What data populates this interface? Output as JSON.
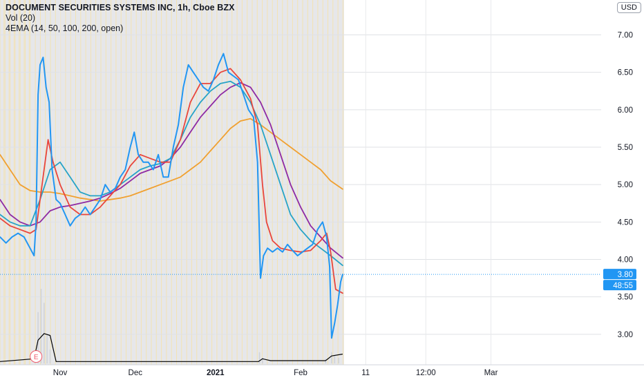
{
  "header": {
    "title": "DOCUMENT SECURITIES SYSTEMS INC, 1h, Cboe BZX",
    "volume_label": "Vol (20)",
    "ema_label": "4EMA (14, 50, 100, 200, open)",
    "currency_button": "USD"
  },
  "price_tag": {
    "price": "3.80",
    "countdown": "48:55"
  },
  "earnings_marker": "E",
  "colors": {
    "price": "#2196f3",
    "ema14": "#e8453c",
    "ema50": "#26a3c7",
    "ema100": "#8e2aa3",
    "ema200": "#f0a030",
    "volume": "#cfd3da",
    "volume_ma": "#000000",
    "session_bg": "#e6e7ea",
    "session_line": "#f3e3b3"
  },
  "chart_data": {
    "type": "line",
    "title": "DOCUMENT SECURITIES SYSTEMS INC, 1h, Cboe BZX",
    "xlabel": "",
    "ylabel": "",
    "ylim": [
      2.62,
      7.3
    ],
    "y_ticks": [
      "7.00",
      "6.50",
      "6.00",
      "5.50",
      "5.00",
      "4.50",
      "4.00",
      "3.50",
      "3.00"
    ],
    "x_ticks": [
      {
        "label": "Nov",
        "x": 6,
        "bold": false
      },
      {
        "label": "Dec",
        "x": 13.5,
        "bold": false
      },
      {
        "label": "2021",
        "x": 21.5,
        "bold": true
      },
      {
        "label": "Feb",
        "x": 30,
        "bold": false
      },
      {
        "label": "11",
        "x": 36.5,
        "bold": false
      },
      {
        "label": "12:00",
        "x": 42.5,
        "bold": false
      },
      {
        "label": "Mar",
        "x": 49,
        "bold": false
      }
    ],
    "x_range": [
      0,
      60
    ],
    "last_data_x": 34.2,
    "grid": true,
    "legend": "top-left",
    "last_price": 3.8,
    "series": [
      {
        "name": "Price",
        "key": "price",
        "points": [
          [
            0,
            4.3
          ],
          [
            0.6,
            4.22
          ],
          [
            1.2,
            4.3
          ],
          [
            1.8,
            4.35
          ],
          [
            2.4,
            4.3
          ],
          [
            3.0,
            4.15
          ],
          [
            3.4,
            4.05
          ],
          [
            3.6,
            4.5
          ],
          [
            3.8,
            6.2
          ],
          [
            4.0,
            6.6
          ],
          [
            4.3,
            6.7
          ],
          [
            4.6,
            6.3
          ],
          [
            4.9,
            6.1
          ],
          [
            5.2,
            5.2
          ],
          [
            5.6,
            4.8
          ],
          [
            6.0,
            4.75
          ],
          [
            6.5,
            4.6
          ],
          [
            7.0,
            4.45
          ],
          [
            7.5,
            4.55
          ],
          [
            8.0,
            4.6
          ],
          [
            8.5,
            4.7
          ],
          [
            9.0,
            4.6
          ],
          [
            9.5,
            4.7
          ],
          [
            10.0,
            4.8
          ],
          [
            10.5,
            5.0
          ],
          [
            11.0,
            4.9
          ],
          [
            11.5,
            4.95
          ],
          [
            12.0,
            5.1
          ],
          [
            12.5,
            5.2
          ],
          [
            13.0,
            5.5
          ],
          [
            13.4,
            5.7
          ],
          [
            13.8,
            5.4
          ],
          [
            14.3,
            5.3
          ],
          [
            14.8,
            5.3
          ],
          [
            15.3,
            5.2
          ],
          [
            15.8,
            5.4
          ],
          [
            16.3,
            5.1
          ],
          [
            16.8,
            5.1
          ],
          [
            17.3,
            5.5
          ],
          [
            17.8,
            5.8
          ],
          [
            18.3,
            6.3
          ],
          [
            18.8,
            6.6
          ],
          [
            19.3,
            6.5
          ],
          [
            19.8,
            6.4
          ],
          [
            20.3,
            6.3
          ],
          [
            20.8,
            6.25
          ],
          [
            21.3,
            6.4
          ],
          [
            21.8,
            6.6
          ],
          [
            22.3,
            6.75
          ],
          [
            22.8,
            6.5
          ],
          [
            23.3,
            6.45
          ],
          [
            23.8,
            6.4
          ],
          [
            24.3,
            6.2
          ],
          [
            24.8,
            6.0
          ],
          [
            25.3,
            5.9
          ],
          [
            25.7,
            5.3
          ],
          [
            26.0,
            3.75
          ],
          [
            26.3,
            4.05
          ],
          [
            26.7,
            4.15
          ],
          [
            27.2,
            4.1
          ],
          [
            27.7,
            4.15
          ],
          [
            28.2,
            4.1
          ],
          [
            28.7,
            4.2
          ],
          [
            29.2,
            4.12
          ],
          [
            29.7,
            4.05
          ],
          [
            30.2,
            4.1
          ],
          [
            30.7,
            4.15
          ],
          [
            31.2,
            4.2
          ],
          [
            31.7,
            4.4
          ],
          [
            32.2,
            4.5
          ],
          [
            32.6,
            4.3
          ],
          [
            32.9,
            3.9
          ],
          [
            33.1,
            2.95
          ],
          [
            33.4,
            3.15
          ],
          [
            33.7,
            3.4
          ],
          [
            34.0,
            3.7
          ],
          [
            34.2,
            3.8
          ]
        ]
      },
      {
        "name": "EMA 14",
        "key": "ema14",
        "points": [
          [
            0,
            4.55
          ],
          [
            1,
            4.45
          ],
          [
            2,
            4.4
          ],
          [
            3,
            4.35
          ],
          [
            3.6,
            4.4
          ],
          [
            4.2,
            5.0
          ],
          [
            4.8,
            5.6
          ],
          [
            5.3,
            5.3
          ],
          [
            6,
            5.0
          ],
          [
            7,
            4.7
          ],
          [
            8,
            4.6
          ],
          [
            9,
            4.6
          ],
          [
            10,
            4.7
          ],
          [
            11,
            4.85
          ],
          [
            12,
            5.0
          ],
          [
            13,
            5.25
          ],
          [
            14,
            5.4
          ],
          [
            15,
            5.35
          ],
          [
            16,
            5.3
          ],
          [
            17,
            5.3
          ],
          [
            18,
            5.6
          ],
          [
            19,
            6.1
          ],
          [
            20,
            6.35
          ],
          [
            21,
            6.35
          ],
          [
            22,
            6.5
          ],
          [
            23,
            6.55
          ],
          [
            24,
            6.4
          ],
          [
            25,
            6.15
          ],
          [
            25.7,
            5.8
          ],
          [
            26.2,
            5.0
          ],
          [
            26.6,
            4.5
          ],
          [
            27.2,
            4.25
          ],
          [
            28,
            4.15
          ],
          [
            29,
            4.12
          ],
          [
            30,
            4.1
          ],
          [
            31,
            4.12
          ],
          [
            32,
            4.25
          ],
          [
            32.6,
            4.35
          ],
          [
            33.0,
            4.1
          ],
          [
            33.5,
            3.6
          ],
          [
            34.2,
            3.55
          ]
        ]
      },
      {
        "name": "EMA 50",
        "key": "ema50",
        "points": [
          [
            0,
            4.6
          ],
          [
            1,
            4.5
          ],
          [
            2,
            4.45
          ],
          [
            3,
            4.45
          ],
          [
            4,
            4.8
          ],
          [
            5,
            5.2
          ],
          [
            6,
            5.3
          ],
          [
            7,
            5.1
          ],
          [
            8,
            4.9
          ],
          [
            9,
            4.85
          ],
          [
            10,
            4.85
          ],
          [
            11,
            4.9
          ],
          [
            12,
            5.0
          ],
          [
            13,
            5.1
          ],
          [
            14,
            5.2
          ],
          [
            15,
            5.25
          ],
          [
            16,
            5.28
          ],
          [
            17,
            5.35
          ],
          [
            18,
            5.6
          ],
          [
            19,
            5.9
          ],
          [
            20,
            6.1
          ],
          [
            21,
            6.25
          ],
          [
            22,
            6.35
          ],
          [
            23,
            6.38
          ],
          [
            24,
            6.3
          ],
          [
            25,
            6.1
          ],
          [
            26,
            5.8
          ],
          [
            27,
            5.4
          ],
          [
            28,
            5.0
          ],
          [
            29,
            4.6
          ],
          [
            30,
            4.4
          ],
          [
            31,
            4.25
          ],
          [
            32,
            4.15
          ],
          [
            33,
            4.05
          ],
          [
            34.2,
            3.92
          ]
        ]
      },
      {
        "name": "EMA 100",
        "key": "ema100",
        "points": [
          [
            0,
            4.8
          ],
          [
            1,
            4.6
          ],
          [
            2,
            4.5
          ],
          [
            3,
            4.45
          ],
          [
            4,
            4.5
          ],
          [
            5,
            4.65
          ],
          [
            6,
            4.7
          ],
          [
            7,
            4.72
          ],
          [
            8,
            4.75
          ],
          [
            9,
            4.78
          ],
          [
            10,
            4.82
          ],
          [
            11,
            4.88
          ],
          [
            12,
            4.95
          ],
          [
            13,
            5.05
          ],
          [
            14,
            5.15
          ],
          [
            15,
            5.2
          ],
          [
            16,
            5.25
          ],
          [
            17,
            5.35
          ],
          [
            18,
            5.5
          ],
          [
            19,
            5.7
          ],
          [
            20,
            5.9
          ],
          [
            21,
            6.05
          ],
          [
            22,
            6.2
          ],
          [
            23,
            6.3
          ],
          [
            24,
            6.36
          ],
          [
            25,
            6.3
          ],
          [
            26,
            6.1
          ],
          [
            27,
            5.8
          ],
          [
            28,
            5.4
          ],
          [
            29,
            5.0
          ],
          [
            30,
            4.7
          ],
          [
            31,
            4.45
          ],
          [
            32,
            4.3
          ],
          [
            33,
            4.15
          ],
          [
            34.2,
            4.02
          ]
        ]
      },
      {
        "name": "EMA 200",
        "key": "ema200",
        "points": [
          [
            0,
            5.4
          ],
          [
            1,
            5.2
          ],
          [
            2,
            5.0
          ],
          [
            3,
            4.92
          ],
          [
            4,
            4.9
          ],
          [
            5,
            4.9
          ],
          [
            6,
            4.88
          ],
          [
            7,
            4.85
          ],
          [
            8,
            4.82
          ],
          [
            9,
            4.8
          ],
          [
            10,
            4.78
          ],
          [
            11,
            4.8
          ],
          [
            12,
            4.82
          ],
          [
            13,
            4.85
          ],
          [
            14,
            4.9
          ],
          [
            15,
            4.95
          ],
          [
            16,
            5.0
          ],
          [
            17,
            5.05
          ],
          [
            18,
            5.1
          ],
          [
            19,
            5.2
          ],
          [
            20,
            5.3
          ],
          [
            21,
            5.45
          ],
          [
            22,
            5.6
          ],
          [
            23,
            5.75
          ],
          [
            24,
            5.85
          ],
          [
            25,
            5.88
          ],
          [
            26,
            5.8
          ],
          [
            27,
            5.7
          ],
          [
            28,
            5.6
          ],
          [
            29,
            5.5
          ],
          [
            30,
            5.4
          ],
          [
            31,
            5.3
          ],
          [
            32,
            5.2
          ],
          [
            33,
            5.05
          ],
          [
            34.2,
            4.94
          ]
        ]
      }
    ],
    "volume": [
      {
        "x": 3.8,
        "v": 0.55
      },
      {
        "x": 4.1,
        "v": 0.8
      },
      {
        "x": 4.4,
        "v": 0.65
      },
      {
        "x": 4.7,
        "v": 0.3
      },
      {
        "x": 5.0,
        "v": 0.15
      },
      {
        "x": 3.5,
        "v": 0.1
      },
      {
        "x": 25.9,
        "v": 0.12
      },
      {
        "x": 26.2,
        "v": 0.06
      },
      {
        "x": 32.5,
        "v": 0.05
      },
      {
        "x": 33.1,
        "v": 0.12
      },
      {
        "x": 33.4,
        "v": 0.08
      },
      {
        "x": 33.8,
        "v": 0.06
      }
    ],
    "volume_ma": [
      [
        0,
        0.02
      ],
      [
        3.4,
        0.05
      ],
      [
        3.8,
        0.25
      ],
      [
        4.4,
        0.32
      ],
      [
        5.0,
        0.3
      ],
      [
        5.6,
        0.02
      ],
      [
        25.8,
        0.02
      ],
      [
        26.2,
        0.05
      ],
      [
        27,
        0.03
      ],
      [
        32.5,
        0.03
      ],
      [
        33.1,
        0.08
      ],
      [
        34.2,
        0.1
      ]
    ],
    "earnings_x": 3.6
  }
}
